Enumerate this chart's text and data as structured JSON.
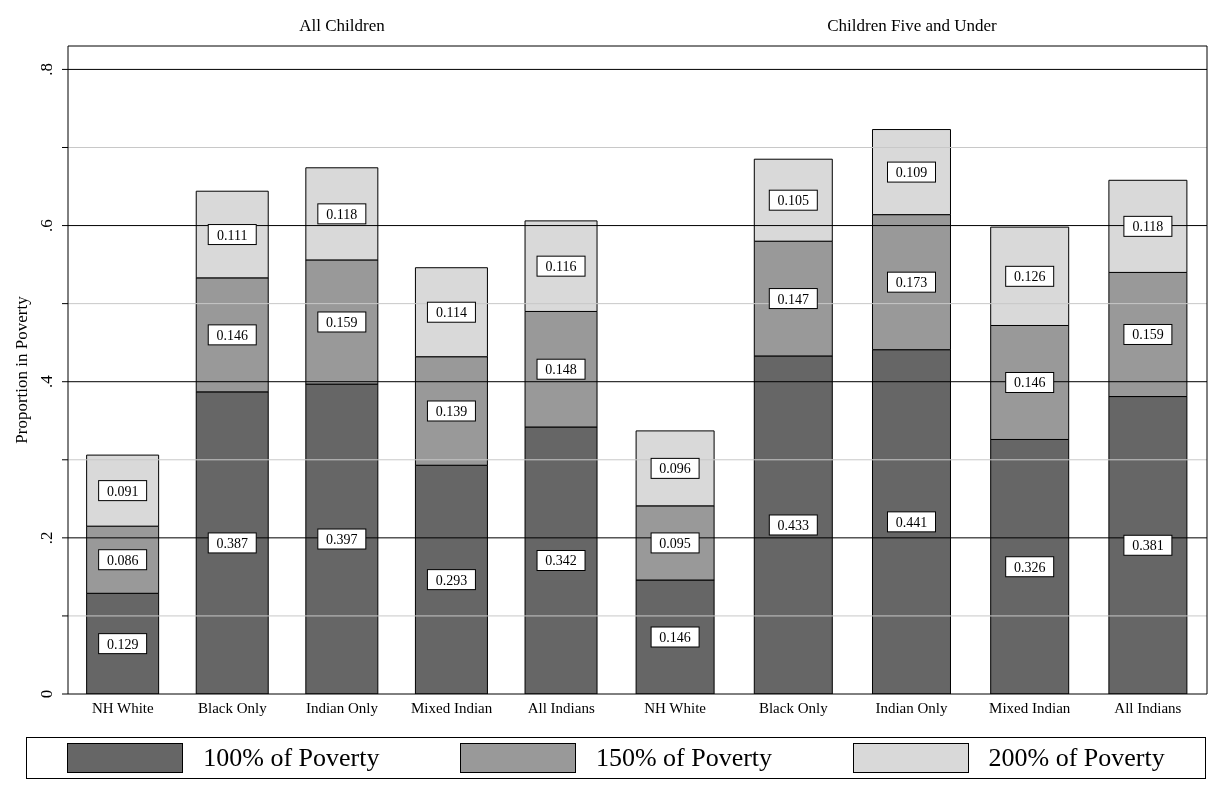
{
  "chart_data": [
    {
      "type": "bar",
      "title": "All Children",
      "ylabel": "Proportion in Poverty",
      "categories": [
        "NH White",
        "Black Only",
        "Indian Only",
        "Mixed Indian",
        "All Indians"
      ],
      "stacked": true,
      "data_labels": true,
      "grid": "y",
      "legend": "bottom",
      "ylim": [
        0,
        0.83
      ],
      "yticks": [
        0,
        {
          "value": 0.1,
          "label": null
        },
        {
          "value": 0.2,
          "label": ".2"
        },
        {
          "value": 0.3,
          "label": null
        },
        {
          "value": 0.4,
          "label": ".4"
        },
        {
          "value": 0.5,
          "label": null
        },
        {
          "value": 0.6,
          "label": ".6"
        },
        {
          "value": 0.7,
          "label": null
        },
        {
          "value": 0.8,
          "label": ".8"
        }
      ],
      "series": [
        {
          "name": "100% of Poverty",
          "color": "#666666",
          "values": [
            0.129,
            0.387,
            0.397,
            0.293,
            0.342
          ]
        },
        {
          "name": "150% of Poverty",
          "color": "#999999",
          "values": [
            0.086,
            0.146,
            0.159,
            0.139,
            0.148
          ]
        },
        {
          "name": "200% of Poverty",
          "color": "#d9d9d9",
          "values": [
            0.091,
            0.111,
            0.118,
            0.114,
            0.116
          ]
        }
      ]
    },
    {
      "type": "bar",
      "title": "Children Five and Under",
      "categories": [
        "NH White",
        "Black Only",
        "Indian Only",
        "Mixed Indian",
        "All Indians"
      ],
      "stacked": true,
      "data_labels": true,
      "grid": "y",
      "tick_labels": "x",
      "ylim": [
        0,
        0.83
      ],
      "yticks": [
        0,
        {
          "value": 0.1,
          "label": null
        },
        0.2,
        {
          "value": 0.3,
          "label": null
        },
        0.4,
        {
          "value": 0.5,
          "label": null
        },
        0.6,
        {
          "value": 0.7,
          "label": null
        },
        0.8
      ],
      "series": [
        {
          "color": "#666666",
          "values": [
            0.146,
            0.433,
            0.441,
            0.326,
            0.381
          ]
        },
        {
          "color": "#999999",
          "values": [
            0.095,
            0.147,
            0.173,
            0.146,
            0.159
          ]
        },
        {
          "color": "#d9d9d9",
          "values": [
            0.096,
            0.105,
            0.109,
            0.126,
            0.118
          ]
        }
      ]
    }
  ]
}
